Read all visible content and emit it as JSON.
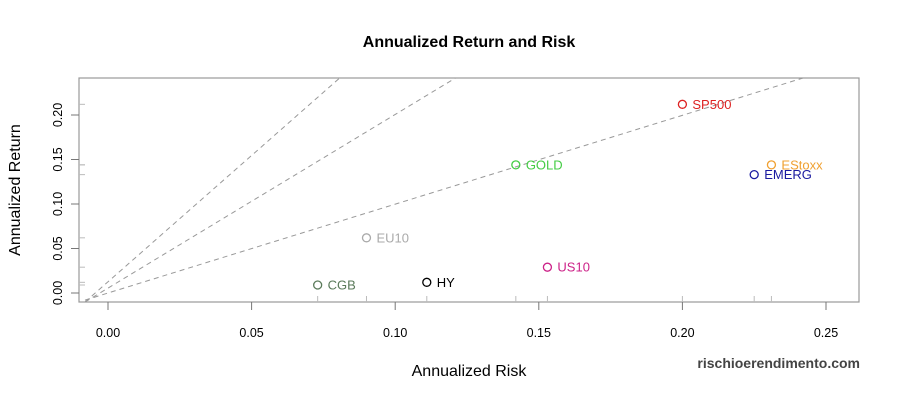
{
  "watermark": "rischioerendimento.com",
  "chart_data": {
    "type": "scatter",
    "title": "Annualized Return and Risk",
    "xlabel": "Annualized Risk",
    "ylabel": "Annualized Return",
    "xlim": [
      -0.01,
      0.26
    ],
    "ylim": [
      -0.01,
      0.24
    ],
    "xticks": [
      "0.00",
      "0.05",
      "0.10",
      "0.15",
      "0.20",
      "0.25"
    ],
    "yticks": [
      "0.00",
      "0.05",
      "0.10",
      "0.15",
      "0.20"
    ],
    "grid": false,
    "legend": "none",
    "points": [
      {
        "name": "SP500",
        "x": 0.2,
        "y": 0.212,
        "color": "#dd2222"
      },
      {
        "name": "EStoxx",
        "x": 0.231,
        "y": 0.144,
        "color": "#f0a030"
      },
      {
        "name": "EMERG",
        "x": 0.225,
        "y": 0.133,
        "color": "#1a1aa0"
      },
      {
        "name": "GOLD",
        "x": 0.142,
        "y": 0.144,
        "color": "#44cc44"
      },
      {
        "name": "EU10",
        "x": 0.09,
        "y": 0.062,
        "color": "#aaaaaa"
      },
      {
        "name": "US10",
        "x": 0.153,
        "y": 0.029,
        "color": "#cc2288"
      },
      {
        "name": "CGB",
        "x": 0.073,
        "y": 0.009,
        "color": "#5a7a5a"
      },
      {
        "name": "HY",
        "x": 0.111,
        "y": 0.012,
        "color": "#000000"
      }
    ],
    "reference_lines": [
      {
        "slope": 3.0,
        "style": "dashed",
        "color": "#999999"
      },
      {
        "slope": 2.0,
        "style": "dashed",
        "color": "#999999"
      },
      {
        "slope": 1.0,
        "style": "dashed",
        "color": "#999999"
      }
    ],
    "rug": true
  }
}
